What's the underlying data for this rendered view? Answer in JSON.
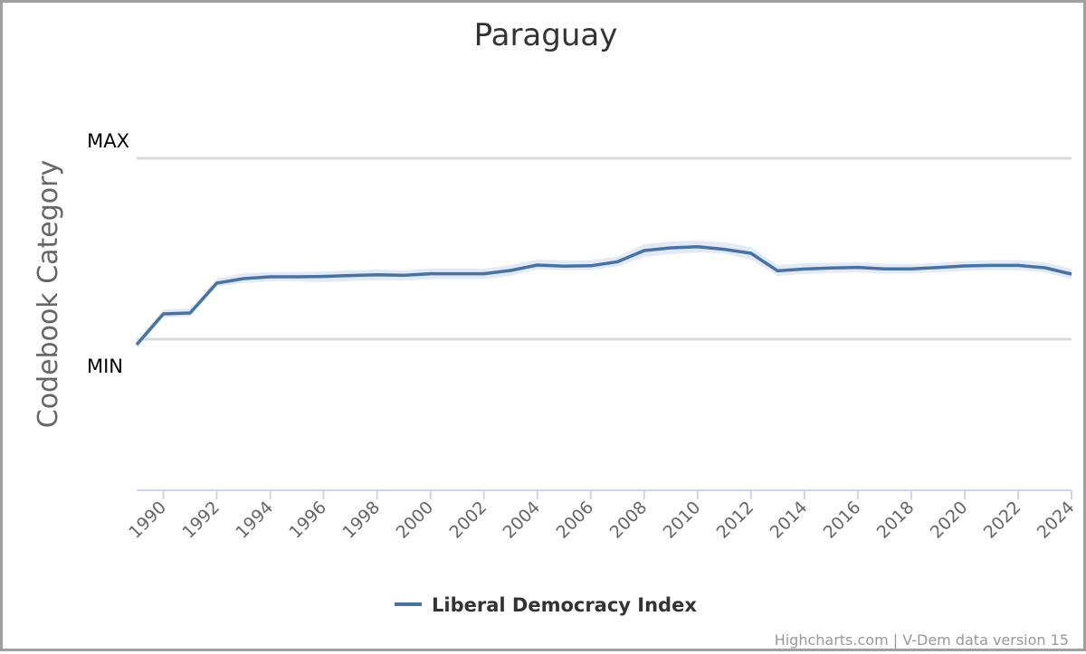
{
  "chart_data": {
    "type": "line",
    "title": "Paraguay",
    "ylabel": "Codebook Category",
    "xlabel": "",
    "y_category_labels": {
      "max": "MAX",
      "min": "MIN"
    },
    "ylim": [
      -0.85,
      1.0
    ],
    "x": [
      1989,
      1990,
      1991,
      1992,
      1993,
      1994,
      1995,
      1996,
      1997,
      1998,
      1999,
      2000,
      2001,
      2002,
      2003,
      2004,
      2005,
      2006,
      2007,
      2008,
      2009,
      2010,
      2011,
      2012,
      2013,
      2014,
      2015,
      2016,
      2017,
      2018,
      2019,
      2020,
      2021,
      2022,
      2023,
      2024
    ],
    "x_ticks": [
      "1990",
      "1992",
      "1994",
      "1996",
      "1998",
      "2000",
      "2002",
      "2004",
      "2006",
      "2008",
      "2010",
      "2012",
      "2014",
      "2016",
      "2018",
      "2020",
      "2022",
      "2024"
    ],
    "series": [
      {
        "name": "Liberal Democracy Index",
        "color": "#4572a7",
        "band_color": "#e3eaf3",
        "values": [
          -0.03,
          0.14,
          0.145,
          0.31,
          0.335,
          0.345,
          0.345,
          0.347,
          0.352,
          0.356,
          0.353,
          0.362,
          0.362,
          0.362,
          0.38,
          0.41,
          0.404,
          0.406,
          0.428,
          0.49,
          0.505,
          0.511,
          0.497,
          0.475,
          0.378,
          0.388,
          0.394,
          0.397,
          0.389,
          0.389,
          0.396,
          0.405,
          0.408,
          0.408,
          0.395,
          0.36
        ],
        "lower": [
          -0.05,
          0.12,
          0.125,
          0.29,
          0.31,
          0.32,
          0.32,
          0.315,
          0.322,
          0.326,
          0.325,
          0.332,
          0.332,
          0.332,
          0.35,
          0.385,
          0.382,
          0.381,
          0.402,
          0.455,
          0.47,
          0.48,
          0.472,
          0.44,
          0.35,
          0.36,
          0.366,
          0.37,
          0.362,
          0.365,
          0.37,
          0.378,
          0.382,
          0.38,
          0.37,
          0.33
        ],
        "upper": [
          -0.01,
          0.165,
          0.17,
          0.335,
          0.365,
          0.37,
          0.37,
          0.375,
          0.38,
          0.385,
          0.38,
          0.39,
          0.39,
          0.39,
          0.41,
          0.44,
          0.435,
          0.437,
          0.458,
          0.525,
          0.54,
          0.545,
          0.535,
          0.51,
          0.41,
          0.42,
          0.422,
          0.425,
          0.417,
          0.415,
          0.422,
          0.432,
          0.437,
          0.437,
          0.425,
          0.39
        ]
      }
    ]
  },
  "legend": {
    "label": "Liberal Democracy Index"
  },
  "credits": "Highcharts.com | V-Dem data version 15"
}
